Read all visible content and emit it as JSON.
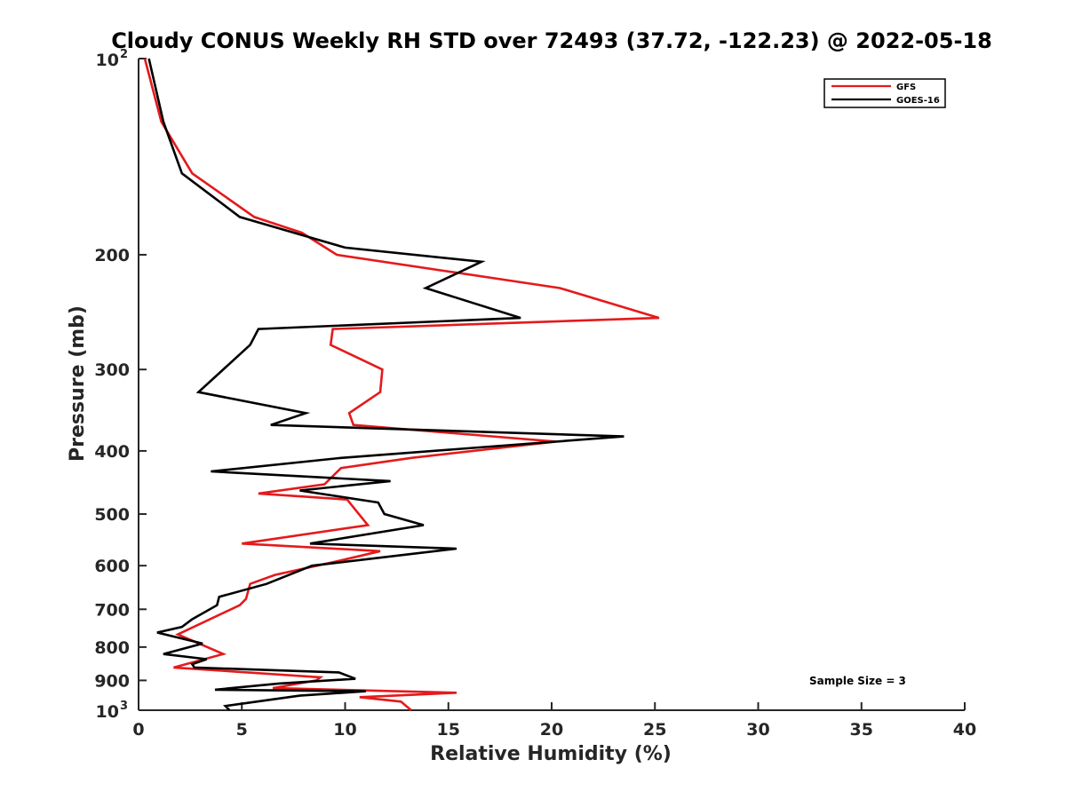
{
  "chart_data": {
    "type": "line",
    "title": "Cloudy CONUS Weekly RH STD over 72493 (37.72, -122.23) @ 2022-05-18",
    "xlabel": "Relative Humidity (%)",
    "ylabel": "Pressure (mb)",
    "xlim": [
      0,
      40
    ],
    "ylim": [
      100,
      1000
    ],
    "y_scale": "log",
    "y_reversed": true,
    "x_ticks": [
      0,
      5,
      10,
      15,
      20,
      25,
      30,
      35,
      40
    ],
    "x_tick_labels": [
      "0",
      "5",
      "10",
      "15",
      "20",
      "25",
      "30",
      "35",
      "40"
    ],
    "y_ticks": [
      200,
      300,
      400,
      500,
      600,
      700,
      800,
      900
    ],
    "y_tick_labels": [
      "200",
      "300",
      "400",
      "500",
      "600",
      "700",
      "800",
      "900"
    ],
    "y_edge_labels": [
      {
        "value": 100,
        "base": "10",
        "exp": "2"
      },
      {
        "value": 1000,
        "base": "10",
        "exp": "3"
      }
    ],
    "grid": false,
    "legend_position": "top-right",
    "annotation": "Sample Size = 3",
    "series": [
      {
        "name": "GFS",
        "color": "#e41a1c",
        "points": [
          [
            0.3,
            100
          ],
          [
            1.1,
            125
          ],
          [
            2.6,
            150
          ],
          [
            5.6,
            175
          ],
          [
            7.9,
            185
          ],
          [
            9.6,
            200
          ],
          [
            20.4,
            225
          ],
          [
            25.2,
            250
          ],
          [
            9.4,
            260
          ],
          [
            9.3,
            275
          ],
          [
            11.8,
            300
          ],
          [
            11.7,
            325
          ],
          [
            10.2,
            350
          ],
          [
            10.4,
            365
          ],
          [
            20.2,
            387
          ],
          [
            13.2,
            410
          ],
          [
            9.8,
            425
          ],
          [
            9.0,
            450
          ],
          [
            5.8,
            465
          ],
          [
            10.1,
            475
          ],
          [
            11.1,
            520
          ],
          [
            5.0,
            555
          ],
          [
            11.7,
            570
          ],
          [
            9.7,
            590
          ],
          [
            6.6,
            620
          ],
          [
            5.4,
            640
          ],
          [
            5.2,
            675
          ],
          [
            4.9,
            690
          ],
          [
            1.9,
            765
          ],
          [
            4.1,
            820
          ],
          [
            1.7,
            860
          ],
          [
            8.8,
            890
          ],
          [
            8.6,
            900
          ],
          [
            6.5,
            925
          ],
          [
            15.4,
            940
          ],
          [
            10.7,
            955
          ],
          [
            12.7,
            970
          ],
          [
            13.2,
            1000
          ]
        ]
      },
      {
        "name": "GOES-16",
        "color": "#000000",
        "points": [
          [
            0.5,
            100
          ],
          [
            1.2,
            125
          ],
          [
            2.1,
            150
          ],
          [
            4.9,
            175
          ],
          [
            10.0,
            195
          ],
          [
            16.6,
            205
          ],
          [
            13.9,
            225
          ],
          [
            18.5,
            250
          ],
          [
            5.8,
            260
          ],
          [
            5.4,
            275
          ],
          [
            2.9,
            325
          ],
          [
            8.1,
            350
          ],
          [
            6.4,
            365
          ],
          [
            23.5,
            380
          ],
          [
            9.8,
            410
          ],
          [
            3.5,
            430
          ],
          [
            12.2,
            445
          ],
          [
            7.8,
            460
          ],
          [
            11.6,
            480
          ],
          [
            11.9,
            500
          ],
          [
            13.8,
            520
          ],
          [
            8.3,
            555
          ],
          [
            15.4,
            565
          ],
          [
            8.4,
            600
          ],
          [
            6.2,
            640
          ],
          [
            3.9,
            670
          ],
          [
            3.8,
            690
          ],
          [
            2.6,
            725
          ],
          [
            2.1,
            745
          ],
          [
            0.9,
            760
          ],
          [
            3.1,
            790
          ],
          [
            1.2,
            820
          ],
          [
            3.3,
            835
          ],
          [
            2.6,
            850
          ],
          [
            2.7,
            860
          ],
          [
            9.7,
            875
          ],
          [
            10.5,
            895
          ],
          [
            6.8,
            910
          ],
          [
            3.7,
            930
          ],
          [
            11.0,
            935
          ],
          [
            7.8,
            950
          ],
          [
            4.2,
            985
          ],
          [
            4.4,
            1000
          ]
        ]
      }
    ]
  }
}
